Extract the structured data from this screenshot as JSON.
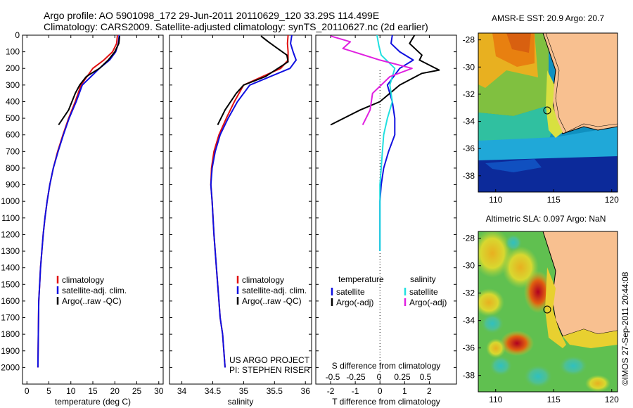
{
  "header": {
    "line1": "Argo profile: AO 5901098_172 29-Jun-2011 20110629_120 33.29S 114.499E",
    "line2": "Climatology: CARS2009. Satellite-adjusted climatology: synTS_20110627.nc (2d earlier)"
  },
  "credit": {
    "line1": "US ARGO PROJECT",
    "line2": "PI: STEPHEN RISER"
  },
  "timestamp": "©IMOS 27-Sep-2011 20:44:08",
  "colors": {
    "climatology": "#e01010",
    "satellite": "#1010e0",
    "argo": "#000000",
    "sat_salinity": "#20e0e0",
    "argo_salinity": "#e020e0",
    "land": "#f8c090"
  },
  "chart_data": [
    {
      "type": "line",
      "panel": "temperature",
      "xlabel": "temperature (deg C)",
      "ylabel": "",
      "xlim": [
        -1,
        31
      ],
      "ylim": [
        0,
        2100
      ],
      "y_inverted": true,
      "xticks": [
        0,
        5,
        10,
        15,
        20,
        25,
        30
      ],
      "yticks": [
        0,
        100,
        200,
        300,
        400,
        500,
        600,
        700,
        800,
        900,
        1000,
        1100,
        1200,
        1300,
        1400,
        1500,
        1600,
        1700,
        1800,
        1900,
        2000
      ],
      "legend": [
        "climatology",
        "satellite-adj. clim.",
        "Argo(..raw -QC)"
      ],
      "series": [
        {
          "name": "climatology",
          "color": "#e01010",
          "x": [
            20.6,
            20.4,
            19.5,
            17.5,
            15.0,
            12.3,
            11.0,
            9.5,
            8.2,
            7.0,
            6.0,
            5.2,
            4.6,
            4.1,
            3.7,
            3.4,
            3.1,
            2.9,
            2.7,
            2.6,
            2.5
          ],
          "y": [
            0,
            50,
            100,
            150,
            200,
            300,
            400,
            500,
            600,
            700,
            800,
            900,
            1000,
            1100,
            1200,
            1300,
            1400,
            1500,
            1600,
            1800,
            2000
          ]
        },
        {
          "name": "satellite-adj. clim.",
          "color": "#1010e0",
          "x": [
            21.0,
            20.8,
            20.2,
            18.8,
            16.5,
            12.6,
            11.2,
            9.6,
            8.3,
            7.1,
            6.0,
            5.2,
            4.6,
            4.1,
            3.7,
            3.4,
            3.1,
            2.9,
            2.7,
            2.6,
            2.5
          ],
          "y": [
            0,
            50,
            100,
            150,
            200,
            300,
            400,
            500,
            600,
            700,
            800,
            900,
            1000,
            1100,
            1200,
            1300,
            1400,
            1500,
            1600,
            1800,
            2000
          ]
        },
        {
          "name": "Argo(..raw -QC)",
          "color": "#000000",
          "x": [
            21.1,
            20.9,
            20.0,
            18.5,
            16.5,
            13.5,
            12.0,
            11.0,
            9.5,
            7.2
          ],
          "y": [
            5,
            50,
            100,
            150,
            200,
            250,
            300,
            350,
            450,
            540
          ]
        }
      ]
    },
    {
      "type": "line",
      "panel": "salinity",
      "xlabel": "salinity",
      "ylabel": "",
      "xlim": [
        33.8,
        36.1
      ],
      "ylim": [
        0,
        2100
      ],
      "y_inverted": true,
      "xticks": [
        34,
        34.5,
        35,
        35.5,
        36
      ],
      "xticklabels": [
        "34",
        "34.5",
        "35",
        "35.5",
        "36"
      ],
      "legend": [
        "climatology",
        "satellite-adj. clim.",
        "Argo(..raw -QC)"
      ],
      "series": [
        {
          "name": "climatology",
          "color": "#e01010",
          "x": [
            35.72,
            35.71,
            35.72,
            35.72,
            35.6,
            35.0,
            34.85,
            34.72,
            34.6,
            34.52,
            34.48,
            34.47,
            34.49,
            34.52,
            34.56,
            34.6,
            34.62,
            34.66,
            34.7
          ],
          "y": [
            0,
            50,
            100,
            150,
            200,
            300,
            400,
            500,
            600,
            700,
            800,
            900,
            1000,
            1200,
            1400,
            1600,
            1700,
            1800,
            2000
          ]
        },
        {
          "name": "satellite-adj. clim.",
          "color": "#1010e0",
          "x": [
            35.78,
            35.76,
            35.8,
            35.85,
            35.75,
            35.1,
            34.9,
            34.75,
            34.62,
            34.54,
            34.49,
            34.47,
            34.49,
            34.52,
            34.56,
            34.6,
            34.62,
            34.66,
            34.7
          ],
          "y": [
            0,
            50,
            100,
            150,
            200,
            300,
            400,
            500,
            600,
            700,
            800,
            900,
            1000,
            1200,
            1400,
            1600,
            1700,
            1800,
            2000
          ]
        },
        {
          "name": "Argo(..raw -QC)",
          "color": "#000000",
          "x": [
            35.28,
            35.4,
            35.55,
            35.7,
            35.72,
            35.35,
            35.0,
            34.88,
            34.7,
            34.58
          ],
          "y": [
            5,
            40,
            80,
            120,
            160,
            250,
            300,
            350,
            450,
            540
          ]
        }
      ]
    },
    {
      "type": "line",
      "panel": "difference",
      "xlabel": "T difference from climatology",
      "xlabel_top": "S difference from climatology",
      "xlim": [
        -2.6,
        3.1
      ],
      "ylim": [
        0,
        2100
      ],
      "y_inverted": true,
      "xticks": [
        -2,
        -1,
        0,
        1,
        2
      ],
      "xticks_top_labels": [
        "-0.5",
        "-0.25",
        "0",
        "0.25",
        "0.5"
      ],
      "legend": {
        "temperature_title": "temperature",
        "salinity_title": "salinity",
        "temperature_items": [
          "satellite",
          "Argo(-adj)"
        ],
        "salinity_items": [
          "satellite",
          "Argo(-adj)"
        ]
      },
      "series": [
        {
          "name": "temperature satellite",
          "color": "#1010e0",
          "x": [
            0.5,
            0.45,
            0.8,
            1.35,
            0.8,
            0.3,
            0.5,
            0.6,
            0.6,
            0.35,
            0.15,
            0.05,
            0.0,
            0.0,
            0.0
          ],
          "y": [
            0,
            50,
            100,
            150,
            200,
            300,
            400,
            500,
            600,
            700,
            800,
            900,
            1000,
            1200,
            1300
          ]
        },
        {
          "name": "temperature Argo(-adj)",
          "color": "#000000",
          "x": [
            1.4,
            1.2,
            1.7,
            1.6,
            2.4,
            1.7,
            0.8,
            0.0,
            -0.8,
            -2.0
          ],
          "y": [
            0,
            50,
            120,
            150,
            210,
            230,
            300,
            400,
            450,
            540
          ]
        },
        {
          "name": "salinity satellite",
          "color": "#20e0e0",
          "x": [
            -0.12,
            -0.05,
            0.05,
            0.6,
            0.4,
            0.5,
            0.3,
            0.15,
            0.1,
            0.05,
            0.0,
            0.0
          ],
          "y": [
            0,
            60,
            120,
            200,
            300,
            400,
            500,
            600,
            700,
            800,
            900,
            1300
          ]
        },
        {
          "name": "salinity Argo(-adj)",
          "color": "#e020e0",
          "x": [
            -2.0,
            -1.2,
            -1.5,
            0.0,
            1.3,
            0.4,
            -0.3,
            -0.4,
            -0.7
          ],
          "y": [
            5,
            40,
            80,
            150,
            200,
            250,
            350,
            450,
            540
          ]
        }
      ]
    },
    {
      "type": "heatmap",
      "panel": "sst-map",
      "title": "AMSR-E SST: 20.9  Argo: 20.7",
      "xlim": [
        108.5,
        120.5
      ],
      "ylim": [
        -39.2,
        -27.5
      ],
      "xticks": [
        110,
        115,
        120
      ],
      "yticks": [
        -28,
        -30,
        -32,
        -34,
        -36,
        -38
      ],
      "marker": {
        "lon": 114.5,
        "lat": -33.29
      }
    },
    {
      "type": "heatmap",
      "panel": "sla-map",
      "title": "Altimetric SLA: 0.097  Argo: NaN",
      "xlim": [
        108.5,
        120.5
      ],
      "ylim": [
        -39.2,
        -27.5
      ],
      "xticks": [
        110,
        115,
        120
      ],
      "yticks": [
        -28,
        -30,
        -32,
        -34,
        -36,
        -38
      ],
      "marker": {
        "lon": 114.5,
        "lat": -33.29
      }
    }
  ]
}
